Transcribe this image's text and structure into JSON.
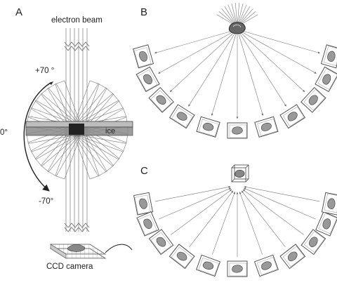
{
  "panels": {
    "a": "A",
    "b": "B",
    "c": "C"
  },
  "panel_a": {
    "beam_label": "electron beam",
    "angle_top": "+70 °",
    "angle_zero": "0°",
    "angle_bottom": "-70°",
    "ice_label": "ice",
    "detector_label": "CCD camera",
    "tilt_range": [
      -70,
      70
    ],
    "tilt_step": 10
  },
  "panel_b": {
    "projection_count": 11
  },
  "panel_c": {
    "projection_count": 11
  },
  "colors": {
    "stroke": "#555555",
    "ice": "#8a8a8a",
    "specimen": "#888888"
  }
}
